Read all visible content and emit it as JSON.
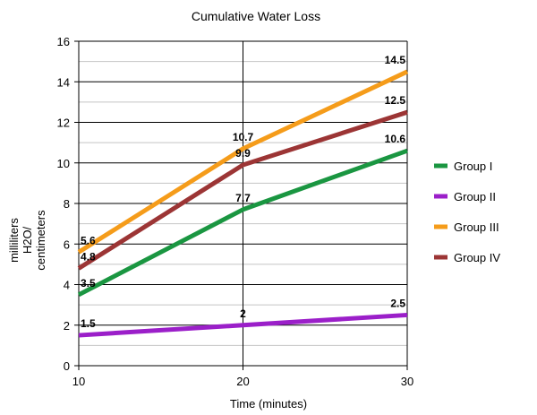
{
  "chart_data": {
    "type": "line",
    "title": "Cumulative Water Loss",
    "xlabel": "Time (minutes)",
    "ylabel_lines": [
      "milliliters",
      "H2O/",
      "centimeters"
    ],
    "x": [
      10,
      20,
      30
    ],
    "xlim": [
      10,
      30
    ],
    "ylim": [
      0,
      16
    ],
    "y_ticks": [
      0,
      2,
      4,
      6,
      8,
      10,
      12,
      14,
      16
    ],
    "x_ticks": [
      10,
      20,
      30
    ],
    "grid": true,
    "legend_position": "right",
    "series": [
      {
        "name": "Group I",
        "color": "#1a9641",
        "values": [
          3.5,
          7.7,
          10.6
        ],
        "labels": [
          "3.5",
          "7.7",
          "10.6"
        ]
      },
      {
        "name": "Group II",
        "color": "#9b1fc9",
        "values": [
          1.5,
          2.0,
          2.5
        ],
        "labels": [
          "1.5",
          "2",
          "2.5"
        ]
      },
      {
        "name": "Group III",
        "color": "#f59c1a",
        "values": [
          5.6,
          10.7,
          14.5
        ],
        "labels": [
          "5.6",
          "10.7",
          "14.5"
        ]
      },
      {
        "name": "Group IV",
        "color": "#9c3535",
        "values": [
          4.8,
          9.9,
          12.5
        ],
        "labels": [
          "4.8",
          "9.9",
          "12.5"
        ]
      }
    ]
  }
}
